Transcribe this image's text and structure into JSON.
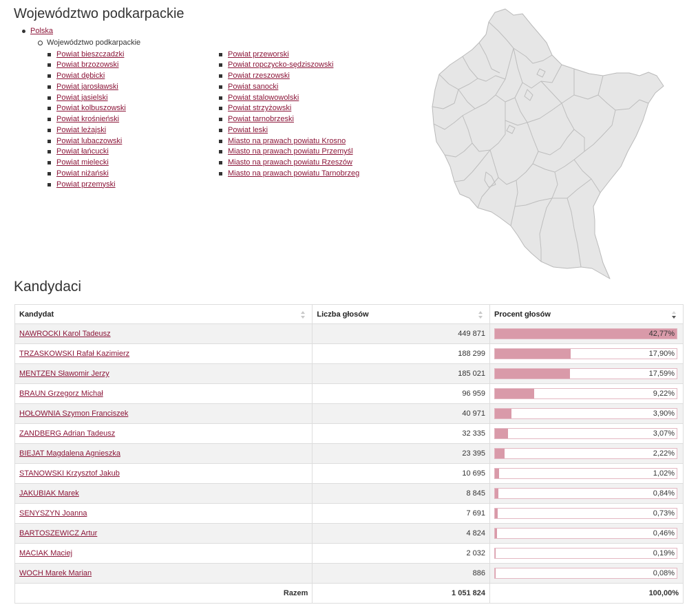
{
  "page_title": "Województwo podkarpackie",
  "breadcrumb": {
    "root": "Polska",
    "current": "Województwo podkarpackie"
  },
  "powiaty_col1": [
    "Powiat bieszczadzki",
    "Powiat brzozowski",
    "Powiat dębicki",
    "Powiat jarosławski",
    "Powiat jasielski",
    "Powiat kolbuszowski",
    "Powiat krośnieński",
    "Powiat leżajski",
    "Powiat lubaczowski",
    "Powiat łańcucki",
    "Powiat mielecki",
    "Powiat niżański",
    "Powiat przemyski"
  ],
  "powiaty_col2": [
    "Powiat przeworski",
    "Powiat ropczycko-sędziszowski",
    "Powiat rzeszowski",
    "Powiat sanocki",
    "Powiat stalowowolski",
    "Powiat strzyżowski",
    "Powiat tarnobrzeski",
    "Powiat leski",
    "Miasto na prawach powiatu Krosno",
    "Miasto na prawach powiatu Przemyśl",
    "Miasto na prawach powiatu Rzeszów",
    "Miasto na prawach powiatu Tarnobrzeg"
  ],
  "candidates_title": "Kandydaci",
  "table": {
    "headers": {
      "name": "Kandydat",
      "votes": "Liczba głosów",
      "pct": "Procent głosów"
    },
    "rows": [
      {
        "name": "NAWROCKI Karol Tadeusz",
        "votes": "449 871",
        "pct": "42,77%",
        "share": 42.77
      },
      {
        "name": "TRZASKOWSKI Rafał Kazimierz",
        "votes": "188 299",
        "pct": "17,90%",
        "share": 17.9
      },
      {
        "name": "MENTZEN Sławomir Jerzy",
        "votes": "185 021",
        "pct": "17,59%",
        "share": 17.59
      },
      {
        "name": "BRAUN Grzegorz Michał",
        "votes": "96 959",
        "pct": "9,22%",
        "share": 9.22
      },
      {
        "name": "HOŁOWNIA Szymon Franciszek",
        "votes": "40 971",
        "pct": "3,90%",
        "share": 3.9
      },
      {
        "name": "ZANDBERG Adrian Tadeusz",
        "votes": "32 335",
        "pct": "3,07%",
        "share": 3.07
      },
      {
        "name": "BIEJAT Magdalena Agnieszka",
        "votes": "23 395",
        "pct": "2,22%",
        "share": 2.22
      },
      {
        "name": "STANOWSKI Krzysztof Jakub",
        "votes": "10 695",
        "pct": "1,02%",
        "share": 1.02
      },
      {
        "name": "JAKUBIAK Marek",
        "votes": "8 845",
        "pct": "0,84%",
        "share": 0.84
      },
      {
        "name": "SENYSZYN Joanna",
        "votes": "7 691",
        "pct": "0,73%",
        "share": 0.73
      },
      {
        "name": "BARTOSZEWICZ Artur",
        "votes": "4 824",
        "pct": "0,46%",
        "share": 0.46
      },
      {
        "name": "MACIAK Maciej",
        "votes": "2 032",
        "pct": "0,19%",
        "share": 0.19
      },
      {
        "name": "WOCH Marek Marian",
        "votes": "886",
        "pct": "0,08%",
        "share": 0.08
      }
    ],
    "total": {
      "label": "Razem",
      "votes": "1 051 824",
      "pct": "100,00%"
    }
  },
  "colors": {
    "link": "#8b1538",
    "bar_fill": "#d99aa9",
    "bar_border": "#e3b7c2",
    "map_fill": "#e6e6e6",
    "map_stroke": "#b9b9b9"
  }
}
